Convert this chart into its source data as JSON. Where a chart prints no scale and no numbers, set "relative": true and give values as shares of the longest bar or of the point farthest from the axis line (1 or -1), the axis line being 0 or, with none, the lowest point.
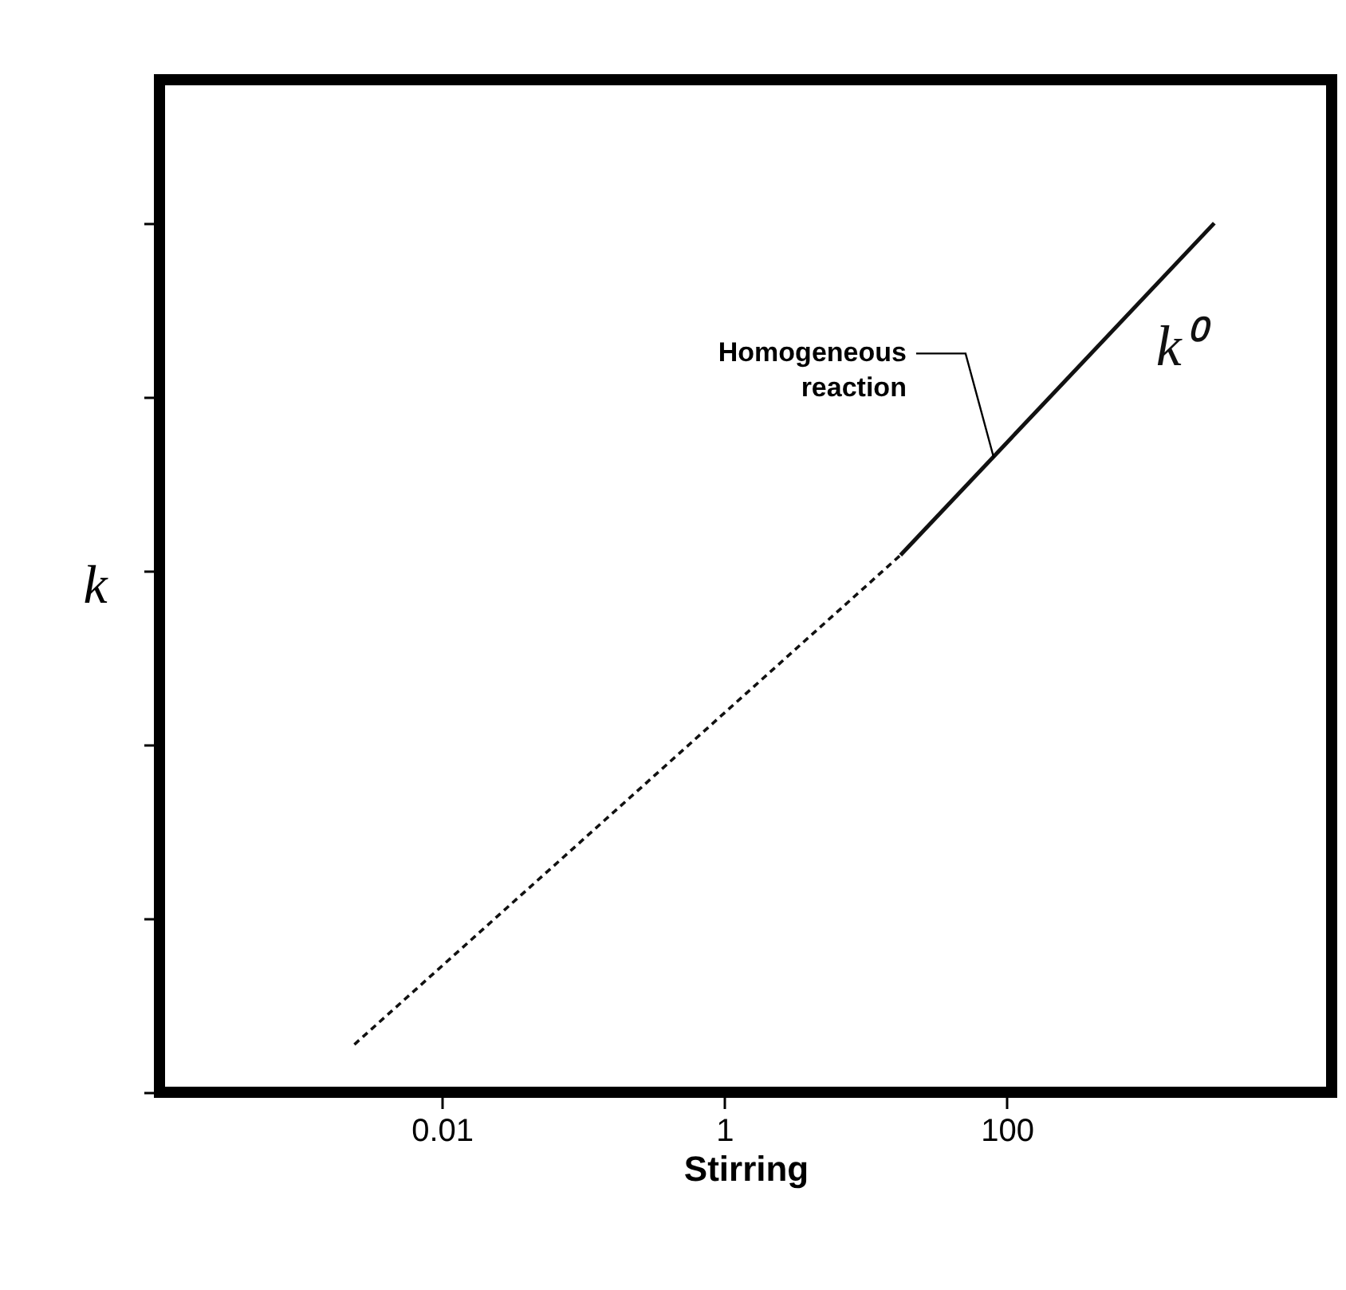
{
  "chart_data": {
    "type": "line",
    "xlabel": "Stirring",
    "ylabel": "k",
    "relative": true,
    "log": "x",
    "xlim": [
      0.0001,
      20000
    ],
    "xticks": [
      0.01,
      1,
      100
    ],
    "tick_labels": "x",
    "grid": false,
    "series": [
      {
        "color": "#111111",
        "line_style": "dashed",
        "x": [
          0.0024,
          17.7
        ],
        "values": [
          0.055,
          0.618
        ]
      },
      {
        "name": "k⁰",
        "color": "#111111",
        "line_style": "solid",
        "x": [
          17.7,
          2950
        ],
        "values": [
          0.618,
          1
        ]
      }
    ],
    "annotations": [
      {
        "text": "Homogeneous reaction",
        "x": 81,
        "y": 0.73
      }
    ]
  }
}
